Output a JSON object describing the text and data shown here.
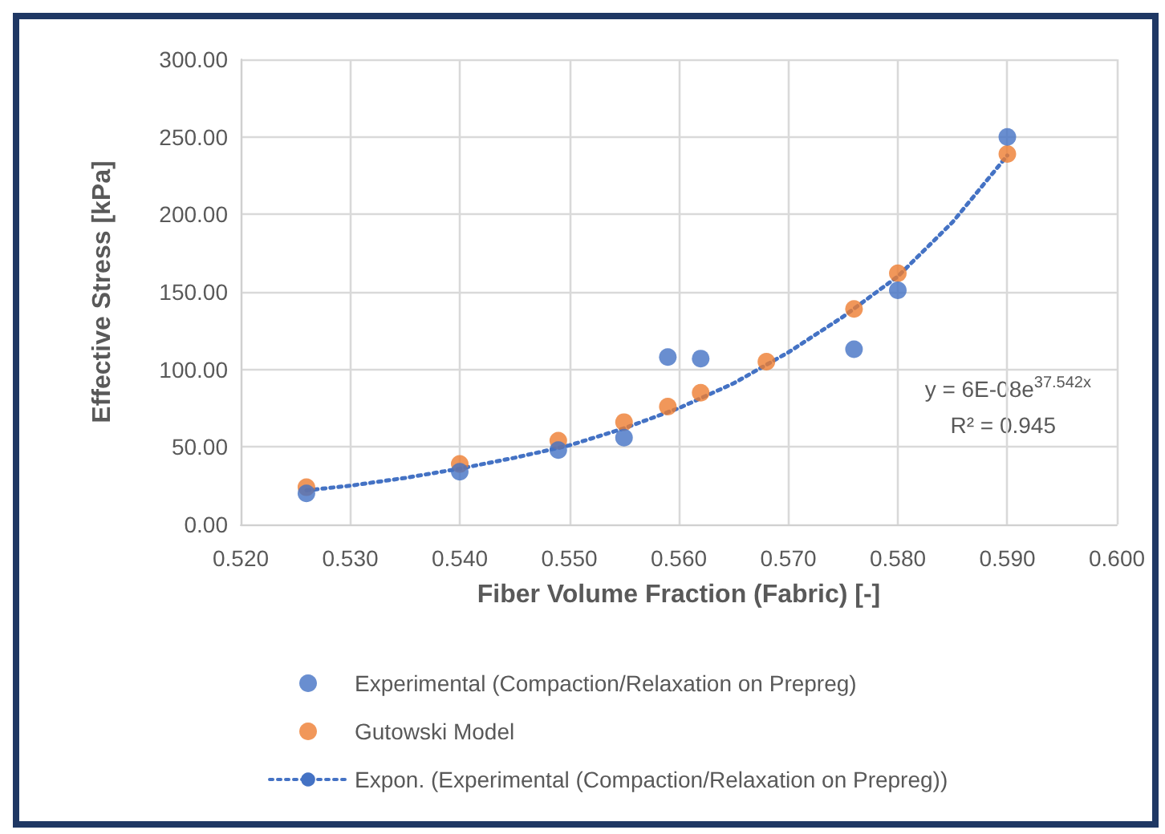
{
  "chart_data": {
    "type": "scatter",
    "xlabel": "Fiber Volume Fraction (Fabric) [-]",
    "ylabel": "Effective Stress [kPa]",
    "series": [
      {
        "name": "Experimental (Compaction/Relaxation on Prepreg)",
        "color": "#4472c4",
        "x": [
          0.526,
          0.54,
          0.549,
          0.555,
          0.559,
          0.562,
          0.576,
          0.58,
          0.59
        ],
        "values": [
          20,
          34,
          48,
          56,
          108,
          107,
          113,
          151,
          250
        ]
      },
      {
        "name": "Gutowski Model",
        "color": "#ed7d31",
        "x": [
          0.526,
          0.54,
          0.549,
          0.555,
          0.559,
          0.562,
          0.568,
          0.576,
          0.58,
          0.59
        ],
        "values": [
          24,
          39,
          54,
          66,
          76,
          85,
          105,
          139,
          162,
          239
        ]
      },
      {
        "name": "Expon. (Experimental (Compaction/Relaxation on Prepreg))",
        "type": "line",
        "line_style": "dotted",
        "marker": "none",
        "color": "#4472c4",
        "x": [
          0.526,
          0.53,
          0.535,
          0.54,
          0.545,
          0.55,
          0.555,
          0.56,
          0.565,
          0.57,
          0.575,
          0.58,
          0.585,
          0.59
        ],
        "values": [
          22,
          25,
          30,
          36,
          43,
          51,
          62,
          75,
          91,
          111,
          134,
          160,
          195,
          238
        ]
      }
    ],
    "annotations": [
      "y = 6E-08e$^{37.542x}$",
      "R² = 0.945"
    ],
    "marker": "circle",
    "grid": true,
    "legend": "bottom",
    "xlim": [
      0.52,
      0.6
    ],
    "xticks": [
      {
        "value": 0.52,
        "label": "0.520"
      },
      {
        "value": 0.53,
        "label": "0.530"
      },
      {
        "value": 0.54,
        "label": "0.540"
      },
      {
        "value": 0.55,
        "label": "0.550"
      },
      {
        "value": 0.56,
        "label": "0.560"
      },
      {
        "value": 0.57,
        "label": "0.570"
      },
      {
        "value": 0.58,
        "label": "0.580"
      },
      {
        "value": 0.59,
        "label": "0.590"
      },
      {
        "value": 0.6,
        "label": "0.600"
      }
    ],
    "ylim": [
      0,
      300
    ],
    "yticks": [
      {
        "value": 0,
        "label": "0.00"
      },
      {
        "value": 50,
        "label": "50.00"
      },
      {
        "value": 100,
        "label": "100.00"
      },
      {
        "value": 150,
        "label": "150.00"
      },
      {
        "value": 200,
        "label": "200.00"
      },
      {
        "value": 250,
        "label": "250.00"
      },
      {
        "value": 300,
        "label": "300.00"
      }
    ]
  }
}
